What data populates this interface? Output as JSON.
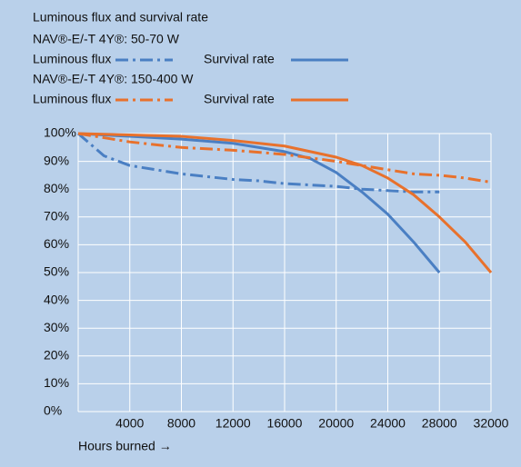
{
  "chart_data": {
    "type": "line",
    "title": "Luminous flux and survival rate",
    "x_label": "Hours burned →",
    "xlim": [
      0,
      32000
    ],
    "xticks": [
      4000,
      8000,
      12000,
      16000,
      20000,
      24000,
      28000,
      32000
    ],
    "ylim": [
      0,
      100
    ],
    "yticks": [
      {
        "value": 0,
        "label": "0%"
      },
      {
        "value": 10,
        "label": "10%"
      },
      {
        "value": 20,
        "label": "20%"
      },
      {
        "value": 30,
        "label": "30%"
      },
      {
        "value": 40,
        "label": "40%"
      },
      {
        "value": 50,
        "label": "50%"
      },
      {
        "value": 60,
        "label": "60%"
      },
      {
        "value": 70,
        "label": "70%"
      },
      {
        "value": 80,
        "label": "80%"
      },
      {
        "value": 90,
        "label": "90%"
      },
      {
        "value": 100,
        "label": "100%"
      }
    ],
    "grid": true,
    "groups": [
      {
        "title": "NAV®-E/-T 4Y®: 50-70 W",
        "series": [
          {
            "name": "Luminous flux",
            "color": "#4a7fc3",
            "dash": "dashdot",
            "x": [
              0,
              2000,
              4000,
              6000,
              8000,
              10000,
              12000,
              14000,
              16000,
              18000,
              20000,
              22000,
              24000,
              26000,
              28000
            ],
            "values": [
              100,
              92,
              88.5,
              87,
              85.5,
              84.5,
              83.5,
              83,
              82,
              81.5,
              81,
              80,
              79.5,
              79,
              79
            ]
          },
          {
            "name": "Survival rate",
            "color": "#4a7fc3",
            "dash": "solid",
            "x": [
              0,
              4000,
              8000,
              12000,
              16000,
              18000,
              20000,
              22000,
              24000,
              26000,
              28000
            ],
            "values": [
              100,
              99,
              98,
              96.5,
              93.5,
              91,
              86,
              79,
              71,
              61,
              50
            ]
          }
        ]
      },
      {
        "title": "NAV®-E/-T 4Y®: 150-400 W",
        "series": [
          {
            "name": "Luminous flux",
            "color": "#e8712c",
            "dash": "dashdot",
            "x": [
              0,
              4000,
              8000,
              12000,
              16000,
              20000,
              22000,
              24000,
              26000,
              28000,
              30000,
              32000
            ],
            "values": [
              100,
              97,
              95,
              94,
              92.5,
              90,
              88.5,
              87,
              85.5,
              85,
              84,
              82.5
            ]
          },
          {
            "name": "Survival rate",
            "color": "#e8712c",
            "dash": "solid",
            "x": [
              0,
              4000,
              8000,
              12000,
              16000,
              20000,
              22000,
              24000,
              26000,
              28000,
              30000,
              32000
            ],
            "values": [
              100,
              99.5,
              99,
              97.5,
              95.5,
              91.5,
              88.5,
              84,
              78,
              70,
              61,
              50
            ]
          }
        ]
      }
    ]
  }
}
